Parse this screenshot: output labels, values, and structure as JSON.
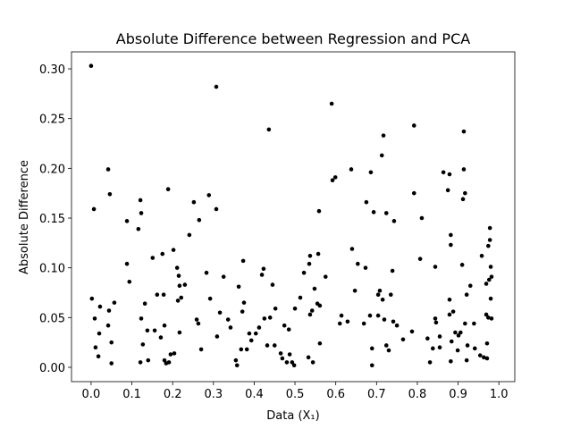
{
  "chart_data": {
    "type": "scatter",
    "title": "Absolute Difference between Regression and PCA",
    "x_label": "Data (X₁)",
    "y_label": "Absolute Difference",
    "color": "#000000",
    "xlim": [
      -0.048,
      1.039
    ],
    "ylim": [
      -0.0144,
      0.3171
    ],
    "xticks": [
      {
        "value": 0,
        "label": "0.0"
      },
      {
        "value": 0.1,
        "label": "0.1"
      },
      {
        "value": 0.2,
        "label": "0.2"
      },
      {
        "value": 0.3,
        "label": "0.3"
      },
      {
        "value": 0.4,
        "label": "0.4"
      },
      {
        "value": 0.5,
        "label": "0.5"
      },
      {
        "value": 0.6,
        "label": "0.6"
      },
      {
        "value": 0.7,
        "label": "0.7"
      },
      {
        "value": 0.8,
        "label": "0.8"
      },
      {
        "value": 0.9,
        "label": "0.9"
      },
      {
        "value": 1,
        "label": "1.0"
      }
    ],
    "yticks": [
      {
        "value": 0,
        "label": "0.00"
      },
      {
        "value": 0.05,
        "label": "0.05"
      },
      {
        "value": 0.1,
        "label": "0.10"
      },
      {
        "value": 0.15,
        "label": "0.15"
      },
      {
        "value": 0.2,
        "label": "0.20"
      },
      {
        "value": 0.25,
        "label": "0.25"
      },
      {
        "value": 0.3,
        "label": "0.30"
      }
    ],
    "x": [
      0.0,
      0.007,
      0.002,
      0.009,
      0.011,
      0.018,
      0.02,
      0.022,
      0.042,
      0.046,
      0.042,
      0.044,
      0.05,
      0.05,
      0.057,
      0.088,
      0.088,
      0.094,
      0.116,
      0.121,
      0.123,
      0.121,
      0.123,
      0.127,
      0.132,
      0.138,
      0.14,
      0.151,
      0.156,
      0.162,
      0.171,
      0.175,
      0.178,
      0.18,
      0.18,
      0.184,
      0.189,
      0.191,
      0.195,
      0.202,
      0.204,
      0.211,
      0.213,
      0.215,
      0.217,
      0.221,
      0.217,
      0.23,
      0.241,
      0.252,
      0.259,
      0.263,
      0.265,
      0.27,
      0.283,
      0.289,
      0.292,
      0.307,
      0.307,
      0.309,
      0.316,
      0.325,
      0.336,
      0.342,
      0.355,
      0.358,
      0.362,
      0.368,
      0.371,
      0.373,
      0.375,
      0.382,
      0.388,
      0.393,
      0.404,
      0.412,
      0.419,
      0.423,
      0.425,
      0.432,
      0.436,
      0.439,
      0.445,
      0.45,
      0.452,
      0.465,
      0.469,
      0.474,
      0.48,
      0.485,
      0.487,
      0.493,
      0.498,
      0.5,
      0.513,
      0.522,
      0.533,
      0.535,
      0.537,
      0.537,
      0.542,
      0.544,
      0.548,
      0.555,
      0.557,
      0.559,
      0.561,
      0.561,
      0.575,
      0.59,
      0.592,
      0.599,
      0.61,
      0.614,
      0.629,
      0.638,
      0.64,
      0.647,
      0.654,
      0.669,
      0.673,
      0.675,
      0.684,
      0.686,
      0.689,
      0.689,
      0.693,
      0.704,
      0.704,
      0.708,
      0.713,
      0.715,
      0.717,
      0.719,
      0.724,
      0.724,
      0.73,
      0.735,
      0.739,
      0.741,
      0.743,
      0.75,
      0.765,
      0.787,
      0.792,
      0.792,
      0.807,
      0.811,
      0.825,
      0.831,
      0.838,
      0.844,
      0.844,
      0.846,
      0.855,
      0.855,
      0.864,
      0.875,
      0.879,
      0.879,
      0.882,
      0.879,
      0.882,
      0.882,
      0.884,
      0.888,
      0.893,
      0.899,
      0.901,
      0.906,
      0.91,
      0.912,
      0.914,
      0.914,
      0.917,
      0.917,
      0.921,
      0.921,
      0.923,
      0.93,
      0.939,
      0.941,
      0.954,
      0.958,
      0.963,
      0.969,
      0.971,
      0.969,
      0.971,
      0.974,
      0.974,
      0.976,
      0.978,
      0.978,
      0.98,
      0.98,
      0.982,
      0.982
    ],
    "y": [
      0.303,
      0.159,
      0.069,
      0.049,
      0.02,
      0.011,
      0.034,
      0.061,
      0.199,
      0.174,
      0.042,
      0.057,
      0.025,
      0.004,
      0.065,
      0.147,
      0.104,
      0.086,
      0.139,
      0.168,
      0.155,
      0.005,
      0.049,
      0.023,
      0.064,
      0.037,
      0.007,
      0.11,
      0.037,
      0.073,
      0.03,
      0.114,
      0.073,
      0.042,
      0.007,
      0.004,
      0.179,
      0.005,
      0.013,
      0.118,
      0.014,
      0.1,
      0.067,
      0.092,
      0.082,
      0.07,
      0.035,
      0.083,
      0.133,
      0.166,
      0.048,
      0.044,
      0.148,
      0.018,
      0.095,
      0.173,
      0.069,
      0.282,
      0.159,
      0.031,
      0.055,
      0.091,
      0.048,
      0.04,
      0.007,
      0.002,
      0.081,
      0.018,
      0.056,
      0.107,
      0.065,
      0.018,
      0.034,
      0.027,
      0.034,
      0.04,
      0.093,
      0.099,
      0.049,
      0.022,
      0.239,
      0.05,
      0.083,
      0.022,
      0.059,
      0.014,
      0.009,
      0.042,
      0.005,
      0.038,
      0.013,
      0.005,
      0.002,
      0.059,
      0.07,
      0.095,
      0.01,
      0.104,
      0.112,
      0.053,
      0.057,
      0.005,
      0.079,
      0.064,
      0.114,
      0.157,
      0.024,
      0.062,
      0.091,
      0.265,
      0.188,
      0.191,
      0.044,
      0.052,
      0.046,
      0.199,
      0.119,
      0.077,
      0.104,
      0.044,
      0.1,
      0.166,
      0.052,
      0.196,
      0.019,
      0.002,
      0.156,
      0.073,
      0.052,
      0.077,
      0.213,
      0.068,
      0.233,
      0.048,
      0.155,
      0.022,
      0.017,
      0.073,
      0.097,
      0.046,
      0.147,
      0.042,
      0.028,
      0.036,
      0.243,
      0.175,
      0.109,
      0.15,
      0.029,
      0.005,
      0.019,
      0.101,
      0.049,
      0.045,
      0.031,
      0.02,
      0.196,
      0.178,
      0.194,
      0.053,
      0.006,
      0.068,
      0.133,
      0.123,
      0.026,
      0.056,
      0.035,
      0.017,
      0.032,
      0.035,
      0.103,
      0.169,
      0.237,
      0.199,
      0.044,
      0.175,
      0.007,
      0.073,
      0.022,
      0.082,
      0.044,
      0.019,
      0.012,
      0.112,
      0.01,
      0.084,
      0.009,
      0.053,
      0.024,
      0.122,
      0.05,
      0.088,
      0.14,
      0.128,
      0.101,
      0.069,
      0.049,
      0.091
    ]
  }
}
